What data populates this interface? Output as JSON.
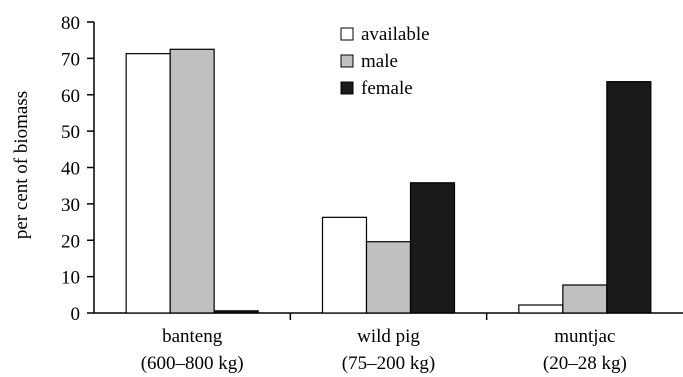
{
  "chart_data": {
    "type": "bar",
    "title": "",
    "xlabel": "",
    "ylabel": "per cent of biomass",
    "ylim": [
      0,
      80
    ],
    "yticks": [
      0,
      10,
      20,
      30,
      40,
      50,
      60,
      70,
      80
    ],
    "grid": false,
    "legend_position": "top-center",
    "categories": [
      {
        "name": "banteng",
        "sub": "(600–800 kg)"
      },
      {
        "name": "wild pig",
        "sub": "(75–200 kg)"
      },
      {
        "name": "muntjac",
        "sub": "(20–28 kg)"
      }
    ],
    "series": [
      {
        "name": "available",
        "color": "#ffffff",
        "values": [
          71.3,
          26.3,
          2.2
        ]
      },
      {
        "name": "male",
        "color": "#c0c0c0",
        "values": [
          72.5,
          19.6,
          7.7
        ]
      },
      {
        "name": "female",
        "color": "#1a1a1a",
        "values": [
          0.6,
          35.8,
          63.6
        ]
      }
    ]
  }
}
